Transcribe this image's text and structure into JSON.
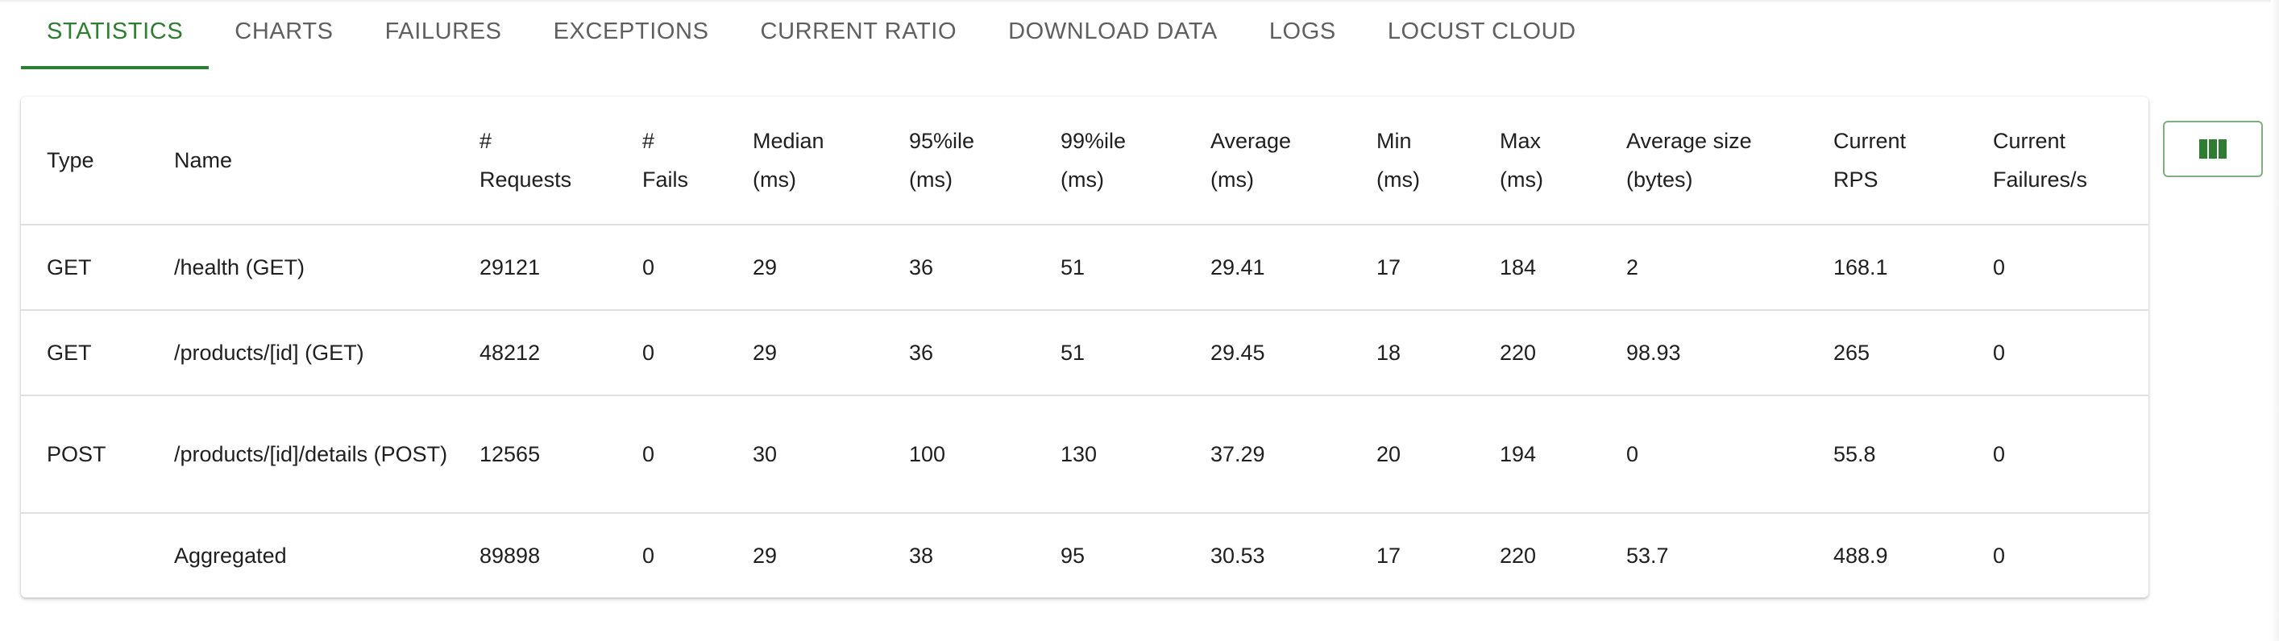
{
  "tabs": [
    {
      "label": "Statistics",
      "active": true
    },
    {
      "label": "Charts",
      "active": false
    },
    {
      "label": "Failures",
      "active": false
    },
    {
      "label": "Exceptions",
      "active": false
    },
    {
      "label": "Current Ratio",
      "active": false
    },
    {
      "label": "Download Data",
      "active": false
    },
    {
      "label": "Logs",
      "active": false
    },
    {
      "label": "Locust Cloud",
      "active": false
    }
  ],
  "table": {
    "headers": [
      [
        "Type"
      ],
      [
        "Name"
      ],
      [
        "#",
        "Requests"
      ],
      [
        "#",
        "Fails"
      ],
      [
        "Median",
        "(ms)"
      ],
      [
        "95%ile",
        "(ms)"
      ],
      [
        "99%ile",
        "(ms)"
      ],
      [
        "Average",
        "(ms)"
      ],
      [
        "Min",
        "(ms)"
      ],
      [
        "Max",
        "(ms)"
      ],
      [
        "Average size",
        "(bytes)"
      ],
      [
        "Current",
        "RPS"
      ],
      [
        "Current",
        "Failures/s"
      ]
    ],
    "rows": [
      [
        "GET",
        "/health (GET)",
        "29121",
        "0",
        "29",
        "36",
        "51",
        "29.41",
        "17",
        "184",
        "2",
        "168.1",
        "0"
      ],
      [
        "GET",
        "/products/[id] (GET)",
        "48212",
        "0",
        "29",
        "36",
        "51",
        "29.45",
        "18",
        "220",
        "98.93",
        "265",
        "0"
      ],
      [
        "POST",
        "/products/[id]/details (POST)",
        "12565",
        "0",
        "30",
        "100",
        "130",
        "37.29",
        "20",
        "194",
        "0",
        "55.8",
        "0"
      ],
      [
        "",
        "Aggregated",
        "89898",
        "0",
        "29",
        "38",
        "95",
        "30.53",
        "17",
        "220",
        "53.7",
        "488.9",
        "0"
      ]
    ]
  },
  "column_selector": {
    "icon": "view-column-icon"
  },
  "colors": {
    "accent": "#2e7d32",
    "text": "#1f1f1f",
    "tab_text": "#5f5f5f",
    "divider": "#e0e0e0"
  }
}
